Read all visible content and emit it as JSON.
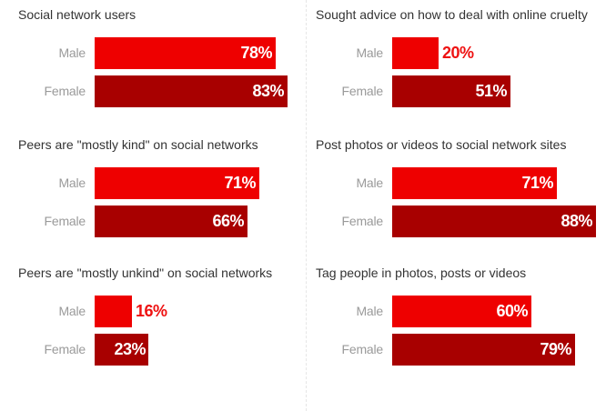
{
  "colors": {
    "male": "#ee0000",
    "female": "#a80000",
    "outside_label": "#ee1111"
  },
  "chart_data": [
    {
      "type": "bar",
      "orientation": "horizontal",
      "title": "Social network users",
      "categories": [
        "Male",
        "Female"
      ],
      "values": [
        78,
        83
      ],
      "labels": [
        "78%",
        "83%"
      ],
      "xlim": [
        0,
        100
      ]
    },
    {
      "type": "bar",
      "orientation": "horizontal",
      "title": "Peers are \"mostly kind\" on social networks",
      "categories": [
        "Male",
        "Female"
      ],
      "values": [
        71,
        66
      ],
      "labels": [
        "71%",
        "66%"
      ],
      "xlim": [
        0,
        100
      ]
    },
    {
      "type": "bar",
      "orientation": "horizontal",
      "title": "Peers are \"mostly unkind\" on social networks",
      "categories": [
        "Male",
        "Female"
      ],
      "values": [
        16,
        23
      ],
      "labels": [
        "16%",
        "23%"
      ],
      "xlim": [
        0,
        100
      ]
    },
    {
      "type": "bar",
      "orientation": "horizontal",
      "title": "Sought advice on how to deal with online cruelty",
      "categories": [
        "Male",
        "Female"
      ],
      "values": [
        20,
        51
      ],
      "labels": [
        "20%",
        "51%"
      ],
      "xlim": [
        0,
        100
      ]
    },
    {
      "type": "bar",
      "orientation": "horizontal",
      "title": "Post photos or videos to social network sites",
      "categories": [
        "Male",
        "Female"
      ],
      "values": [
        71,
        88
      ],
      "labels": [
        "71%",
        "88%"
      ],
      "xlim": [
        0,
        100
      ]
    },
    {
      "type": "bar",
      "orientation": "horizontal",
      "title": "Tag people in photos, posts or videos",
      "categories": [
        "Male",
        "Female"
      ],
      "values": [
        60,
        79
      ],
      "labels": [
        "60%",
        "79%"
      ],
      "xlim": [
        0,
        100
      ]
    }
  ]
}
